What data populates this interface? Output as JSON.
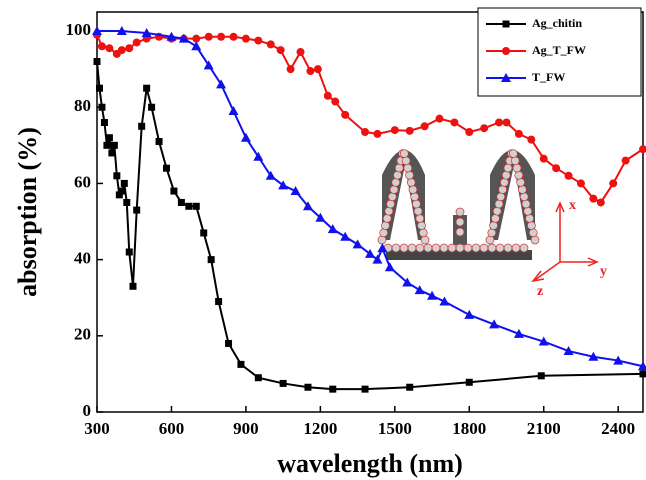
{
  "chart_data": {
    "type": "line",
    "x_label": "wavelength (nm)",
    "y_label": "absorption (%)",
    "xlim": [
      300,
      2500
    ],
    "ylim": [
      0,
      105
    ],
    "xticks": [
      300,
      600,
      900,
      1200,
      1500,
      1800,
      2100,
      2400
    ],
    "yticks": [
      0,
      20,
      40,
      60,
      80,
      100
    ],
    "legend": "upper right",
    "annotations": [
      "x",
      "y",
      "z"
    ],
    "series": [
      {
        "name": "Ag_chitin",
        "color": "#000000",
        "marker": "square",
        "x": [
          300,
          310,
          320,
          330,
          340,
          350,
          360,
          370,
          380,
          390,
          400,
          410,
          420,
          430,
          445,
          460,
          480,
          500,
          520,
          550,
          580,
          610,
          640,
          670,
          700,
          730,
          760,
          790,
          830,
          880,
          950,
          1050,
          1150,
          1250,
          1380,
          1560,
          1800,
          2090,
          2500
        ],
        "values": [
          92,
          85,
          80,
          76,
          70,
          72,
          68,
          70,
          62,
          57,
          58,
          60,
          55,
          42,
          33,
          53,
          75,
          85,
          80,
          71,
          64,
          58,
          55,
          54,
          54,
          47,
          40,
          29,
          18,
          12.5,
          9,
          7.5,
          6.5,
          6,
          6,
          6.5,
          7.8,
          9.5,
          10
        ]
      },
      {
        "name": "Ag_T_FW",
        "color": "#ee1111",
        "marker": "circle",
        "x": [
          300,
          320,
          350,
          380,
          400,
          430,
          460,
          500,
          550,
          600,
          650,
          700,
          750,
          800,
          850,
          900,
          950,
          1000,
          1040,
          1080,
          1120,
          1160,
          1190,
          1230,
          1260,
          1300,
          1380,
          1430,
          1500,
          1560,
          1620,
          1680,
          1740,
          1800,
          1860,
          1920,
          1950,
          2000,
          2050,
          2100,
          2150,
          2200,
          2250,
          2300,
          2330,
          2380,
          2430,
          2500
        ],
        "values": [
          99,
          96,
          95.5,
          94,
          95,
          95.5,
          97,
          98,
          98.5,
          98,
          98,
          98,
          98.5,
          98.5,
          98.5,
          98,
          97.5,
          96.5,
          95,
          90,
          94.5,
          89.5,
          90,
          83,
          81.5,
          78,
          73.5,
          73,
          74,
          73.8,
          75,
          77,
          76,
          73.5,
          74.5,
          76,
          76,
          73,
          71.5,
          66.5,
          64,
          62,
          60,
          56,
          55,
          60,
          66,
          69
        ]
      },
      {
        "name": "T_FW",
        "color": "#1111ee",
        "marker": "triangle",
        "x": [
          300,
          400,
          500,
          600,
          650,
          700,
          750,
          800,
          850,
          900,
          950,
          1000,
          1050,
          1100,
          1150,
          1200,
          1250,
          1300,
          1350,
          1400,
          1430,
          1450,
          1480,
          1550,
          1600,
          1650,
          1700,
          1800,
          1900,
          2000,
          2100,
          2200,
          2300,
          2400,
          2500
        ],
        "values": [
          100,
          100,
          99.5,
          98.5,
          98,
          96,
          91,
          86,
          79,
          72,
          67,
          62,
          59.5,
          58,
          54,
          51,
          48,
          46,
          44,
          41.5,
          40,
          43,
          38,
          34,
          32,
          30.5,
          29,
          25.5,
          23,
          20.5,
          18.5,
          16,
          14.5,
          13.5,
          12
        ]
      }
    ]
  }
}
